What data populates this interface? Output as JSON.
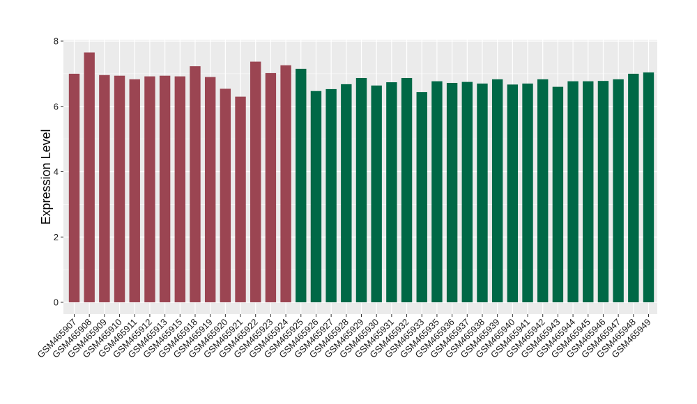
{
  "chart_data": {
    "type": "bar",
    "title": "",
    "xlabel": "",
    "ylabel": "Expression Level",
    "ylim": [
      0,
      8
    ],
    "yticks": [
      0,
      2,
      4,
      6,
      8
    ],
    "grid": true,
    "legend": "none",
    "categories": [
      "GSM465907",
      "GSM465908",
      "GSM465909",
      "GSM465910",
      "GSM465911",
      "GSM465912",
      "GSM465913",
      "GSM465915",
      "GSM465918",
      "GSM465919",
      "GSM465920",
      "GSM465921",
      "GSM465922",
      "GSM465923",
      "GSM465924",
      "GSM465925",
      "GSM465926",
      "GSM465927",
      "GSM465928",
      "GSM465929",
      "GSM465930",
      "GSM465931",
      "GSM465932",
      "GSM465933",
      "GSM465935",
      "GSM465936",
      "GSM465937",
      "GSM465938",
      "GSM465939",
      "GSM465940",
      "GSM465941",
      "GSM465942",
      "GSM465943",
      "GSM465944",
      "GSM465945",
      "GSM465946",
      "GSM465947",
      "GSM465948",
      "GSM465949"
    ],
    "values": [
      7.0,
      7.65,
      6.96,
      6.94,
      6.83,
      6.92,
      6.94,
      6.92,
      7.23,
      6.9,
      6.54,
      6.3,
      7.37,
      7.02,
      7.26,
      7.15,
      6.47,
      6.53,
      6.68,
      6.87,
      6.64,
      6.74,
      6.87,
      6.44,
      6.77,
      6.72,
      6.75,
      6.7,
      6.83,
      6.67,
      6.7,
      6.83,
      6.6,
      6.77,
      6.77,
      6.78,
      6.83,
      7.0,
      7.04
    ],
    "groups": [
      0,
      0,
      0,
      0,
      0,
      0,
      0,
      0,
      0,
      0,
      0,
      0,
      0,
      0,
      0,
      1,
      1,
      1,
      1,
      1,
      1,
      1,
      1,
      1,
      1,
      1,
      1,
      1,
      1,
      1,
      1,
      1,
      1,
      1,
      1,
      1,
      1,
      1,
      1
    ],
    "group_colors": [
      "#9b4552",
      "#006846"
    ],
    "panel_background": "#ebebeb",
    "grid_color": "#ffffff"
  }
}
